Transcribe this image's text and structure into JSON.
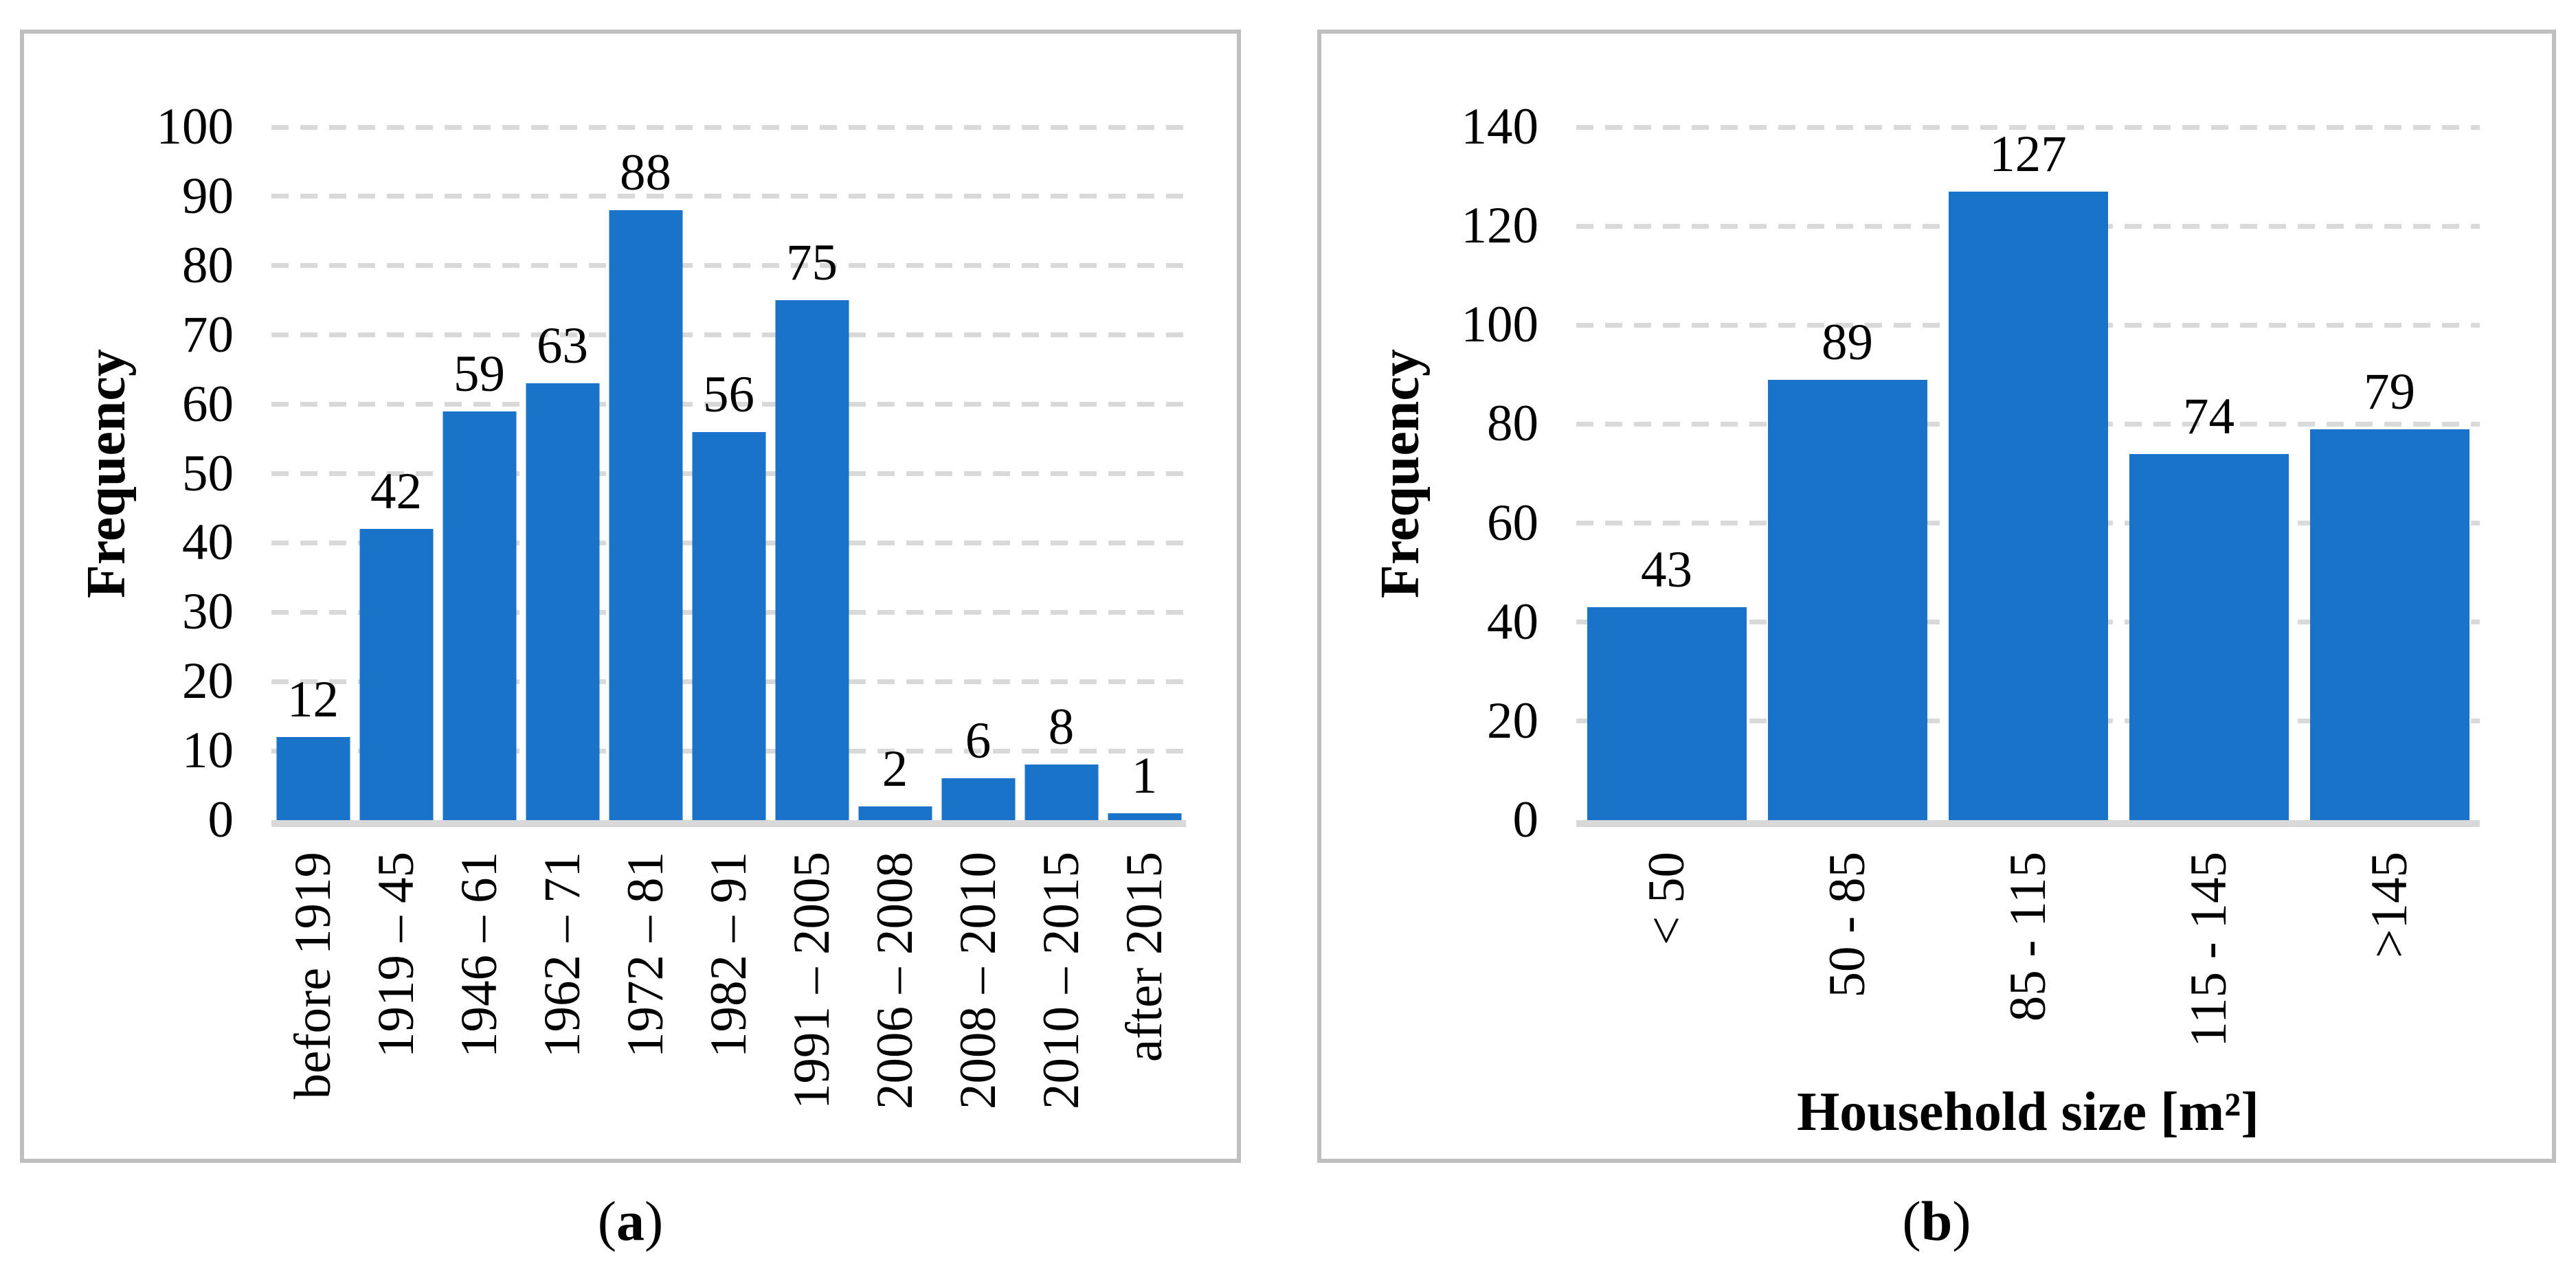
{
  "style": {
    "bar_color": "#1873C9",
    "grid_color": "#D9D9D9",
    "panel_border_color": "#BFBFBF",
    "text_color": "#000000"
  },
  "chart_data": [
    {
      "type": "bar",
      "panel": "a",
      "title": "",
      "categories": [
        "before 1919",
        "1919 – 45",
        "1946 – 61",
        "1962 – 71",
        "1972 – 81",
        "1982 – 91",
        "1991 – 2005",
        "2006 – 2008",
        "2008 – 2010",
        "2010 – 2015",
        "after 2015"
      ],
      "values": [
        12,
        42,
        59,
        63,
        88,
        56,
        75,
        2,
        6,
        8,
        1
      ],
      "xlabel": "",
      "ylabel": "Frequency",
      "ylim": [
        0,
        100
      ],
      "ytick_step": 10,
      "yticks": [
        0,
        10,
        20,
        30,
        40,
        50,
        60,
        70,
        80,
        90,
        100
      ],
      "grid": "horizontal-dashed",
      "legend": "none",
      "data_labels": "above-bars"
    },
    {
      "type": "bar",
      "panel": "b",
      "title": "",
      "categories": [
        "< 50",
        "50 - 85",
        "85 - 115",
        "115 - 145",
        ">145"
      ],
      "values": [
        43,
        89,
        127,
        74,
        79
      ],
      "xlabel": "Household size [m²]",
      "ylabel": "Frequency",
      "ylim": [
        0,
        140
      ],
      "ytick_step": 20,
      "yticks": [
        0,
        20,
        40,
        60,
        80,
        100,
        120,
        140
      ],
      "grid": "horizontal-dashed",
      "legend": "none",
      "data_labels": "above-bars"
    }
  ],
  "captions": {
    "a": {
      "open": "(",
      "letter": "a",
      "close": ")"
    },
    "b": {
      "open": "(",
      "letter": "b",
      "close": ")"
    }
  }
}
